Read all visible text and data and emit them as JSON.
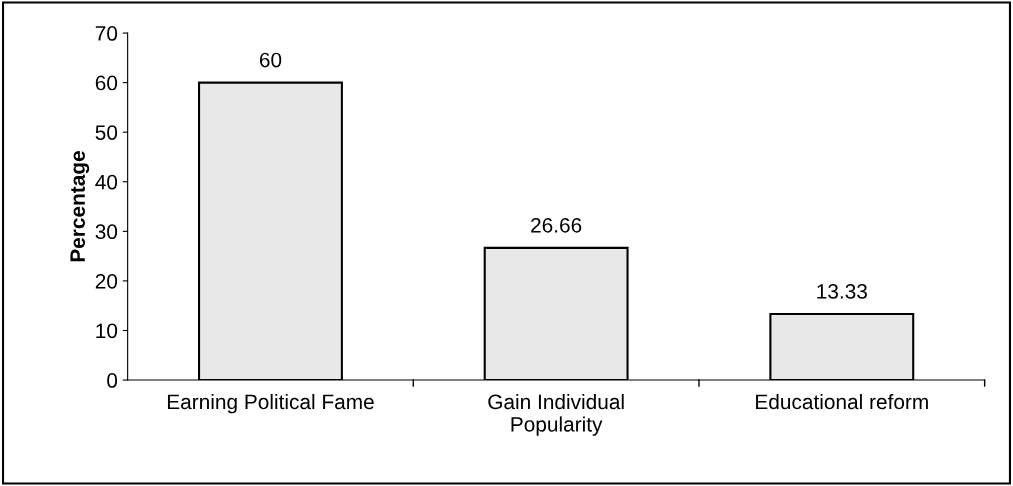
{
  "chart_data": {
    "type": "bar",
    "ylabel": "Percentage",
    "categories": [
      "Earning Political Fame",
      "Gain Individual\nPopularity",
      "Educational reform"
    ],
    "values": [
      60,
      26.66,
      13.33
    ],
    "color": "#e8e8e8",
    "ylim": [
      0,
      70
    ],
    "yticks": [
      0,
      10,
      20,
      30,
      40,
      50,
      60,
      70
    ],
    "data_labels": true,
    "grid": false,
    "legend": false
  }
}
